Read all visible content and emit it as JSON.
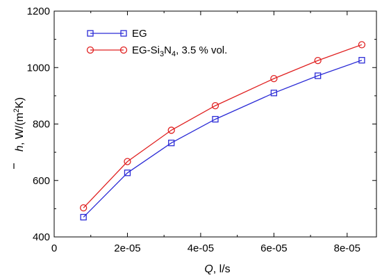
{
  "chart_data": {
    "type": "line",
    "xlabel": {
      "symbol": "Q",
      "unit": ", l/s"
    },
    "ylabel": {
      "symbol": "h",
      "unit_before": ", W/(m",
      "sup": "2",
      "unit_after": "K)"
    },
    "xlim": [
      0,
      8.8e-05
    ],
    "ylim": [
      400,
      1200
    ],
    "xticks": [
      {
        "value": 0,
        "label": "0"
      },
      {
        "value": 2e-05,
        "label": "2e-05"
      },
      {
        "value": 4e-05,
        "label": "4e-05"
      },
      {
        "value": 6e-05,
        "label": "6e-05"
      },
      {
        "value": 8e-05,
        "label": "8e-05"
      }
    ],
    "yticks": [
      {
        "value": 400,
        "label": "400"
      },
      {
        "value": 600,
        "label": "600"
      },
      {
        "value": 800,
        "label": "800"
      },
      {
        "value": 1000,
        "label": "1000"
      },
      {
        "value": 1200,
        "label": "1200"
      }
    ],
    "grid": false,
    "legend_position": "top-left",
    "series": [
      {
        "name": "EG",
        "color": "#2b2bd6",
        "marker": "square",
        "x": [
          8e-06,
          2e-05,
          3.2e-05,
          4.4e-05,
          6e-05,
          7.2e-05,
          8.4e-05
        ],
        "y": [
          470,
          627,
          733,
          817,
          910,
          971,
          1026
        ]
      },
      {
        "name": "EG-Si3N4, 3.5 % vol.",
        "legend_parts": [
          "EG-Si",
          "3",
          "N",
          "4",
          ", 3.5 % vol."
        ],
        "color": "#e02020",
        "marker": "circle",
        "x": [
          8e-06,
          2e-05,
          3.2e-05,
          4.4e-05,
          6e-05,
          7.2e-05,
          8.4e-05
        ],
        "y": [
          503,
          667,
          778,
          865,
          961,
          1025,
          1081
        ]
      }
    ]
  }
}
